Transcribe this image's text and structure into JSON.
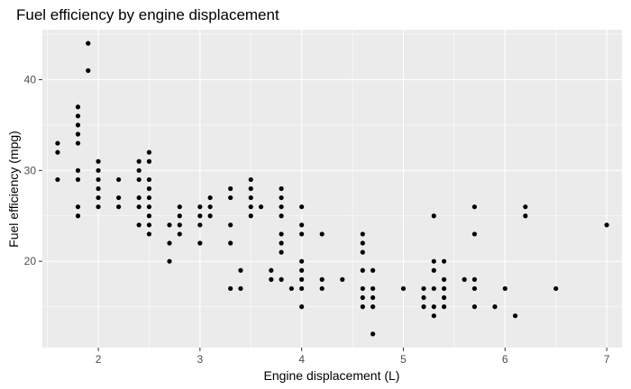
{
  "chart_data": {
    "type": "scatter",
    "title": "Fuel efficiency by engine displacement",
    "xlabel": "Engine displacement (L)",
    "ylabel": "Fuel efficiency (mpg)",
    "xlim": [
      1.45,
      7.15
    ],
    "ylim": [
      10.5,
      45.5
    ],
    "x_ticks": [
      2,
      3,
      4,
      5,
      6,
      7
    ],
    "y_ticks": [
      20,
      30,
      40
    ],
    "grid": true,
    "colors": {
      "panel": "#EBEBEB",
      "grid": "#FFFFFF",
      "point": "#000000"
    },
    "points": [
      [
        1.6,
        33
      ],
      [
        1.6,
        32
      ],
      [
        1.6,
        29
      ],
      [
        1.8,
        37
      ],
      [
        1.8,
        36
      ],
      [
        1.8,
        35
      ],
      [
        1.8,
        34
      ],
      [
        1.8,
        33
      ],
      [
        1.8,
        30
      ],
      [
        1.8,
        29
      ],
      [
        1.8,
        26
      ],
      [
        1.8,
        25
      ],
      [
        1.9,
        44
      ],
      [
        1.9,
        41
      ],
      [
        2.0,
        31
      ],
      [
        2.0,
        30
      ],
      [
        2.0,
        29
      ],
      [
        2.0,
        28
      ],
      [
        2.0,
        27
      ],
      [
        2.0,
        26
      ],
      [
        2.2,
        29
      ],
      [
        2.2,
        27
      ],
      [
        2.2,
        26
      ],
      [
        2.4,
        31
      ],
      [
        2.4,
        30
      ],
      [
        2.4,
        29
      ],
      [
        2.4,
        27
      ],
      [
        2.4,
        26
      ],
      [
        2.4,
        24
      ],
      [
        2.5,
        32
      ],
      [
        2.5,
        31
      ],
      [
        2.5,
        29
      ],
      [
        2.5,
        28
      ],
      [
        2.5,
        27
      ],
      [
        2.5,
        26
      ],
      [
        2.5,
        25
      ],
      [
        2.5,
        24
      ],
      [
        2.5,
        23
      ],
      [
        2.7,
        24
      ],
      [
        2.7,
        22
      ],
      [
        2.7,
        20
      ],
      [
        2.8,
        26
      ],
      [
        2.8,
        25
      ],
      [
        2.8,
        24
      ],
      [
        2.8,
        23
      ],
      [
        3.0,
        26
      ],
      [
        3.0,
        25
      ],
      [
        3.0,
        24
      ],
      [
        3.0,
        22
      ],
      [
        3.1,
        27
      ],
      [
        3.1,
        26
      ],
      [
        3.1,
        25
      ],
      [
        3.3,
        28
      ],
      [
        3.3,
        27
      ],
      [
        3.3,
        24
      ],
      [
        3.3,
        22
      ],
      [
        3.3,
        17
      ],
      [
        3.4,
        19
      ],
      [
        3.4,
        17
      ],
      [
        3.5,
        29
      ],
      [
        3.5,
        28
      ],
      [
        3.5,
        27
      ],
      [
        3.5,
        26
      ],
      [
        3.5,
        25
      ],
      [
        3.6,
        26
      ],
      [
        3.7,
        19
      ],
      [
        3.7,
        18
      ],
      [
        3.8,
        28
      ],
      [
        3.8,
        27
      ],
      [
        3.8,
        26
      ],
      [
        3.8,
        25
      ],
      [
        3.8,
        23
      ],
      [
        3.8,
        22
      ],
      [
        3.8,
        21
      ],
      [
        3.8,
        18
      ],
      [
        3.9,
        17
      ],
      [
        4.0,
        26
      ],
      [
        4.0,
        24
      ],
      [
        4.0,
        23
      ],
      [
        4.0,
        20
      ],
      [
        4.0,
        19
      ],
      [
        4.0,
        18
      ],
      [
        4.0,
        17
      ],
      [
        4.0,
        15
      ],
      [
        4.2,
        23
      ],
      [
        4.2,
        18
      ],
      [
        4.2,
        17
      ],
      [
        4.4,
        18
      ],
      [
        4.6,
        23
      ],
      [
        4.6,
        22
      ],
      [
        4.6,
        21
      ],
      [
        4.6,
        19
      ],
      [
        4.6,
        17
      ],
      [
        4.6,
        16
      ],
      [
        4.6,
        15
      ],
      [
        4.7,
        19
      ],
      [
        4.7,
        17
      ],
      [
        4.7,
        16
      ],
      [
        4.7,
        15
      ],
      [
        4.7,
        12
      ],
      [
        5.0,
        17
      ],
      [
        5.2,
        17
      ],
      [
        5.2,
        16
      ],
      [
        5.2,
        15
      ],
      [
        5.3,
        25
      ],
      [
        5.3,
        20
      ],
      [
        5.3,
        19
      ],
      [
        5.3,
        17
      ],
      [
        5.3,
        15
      ],
      [
        5.3,
        14
      ],
      [
        5.4,
        20
      ],
      [
        5.4,
        18
      ],
      [
        5.4,
        17
      ],
      [
        5.4,
        16
      ],
      [
        5.4,
        15
      ],
      [
        5.6,
        18
      ],
      [
        5.7,
        26
      ],
      [
        5.7,
        23
      ],
      [
        5.7,
        18
      ],
      [
        5.7,
        17
      ],
      [
        5.7,
        15
      ],
      [
        5.9,
        15
      ],
      [
        6.0,
        17
      ],
      [
        6.1,
        14
      ],
      [
        6.2,
        26
      ],
      [
        6.2,
        25
      ],
      [
        6.5,
        17
      ],
      [
        7.0,
        24
      ]
    ]
  }
}
